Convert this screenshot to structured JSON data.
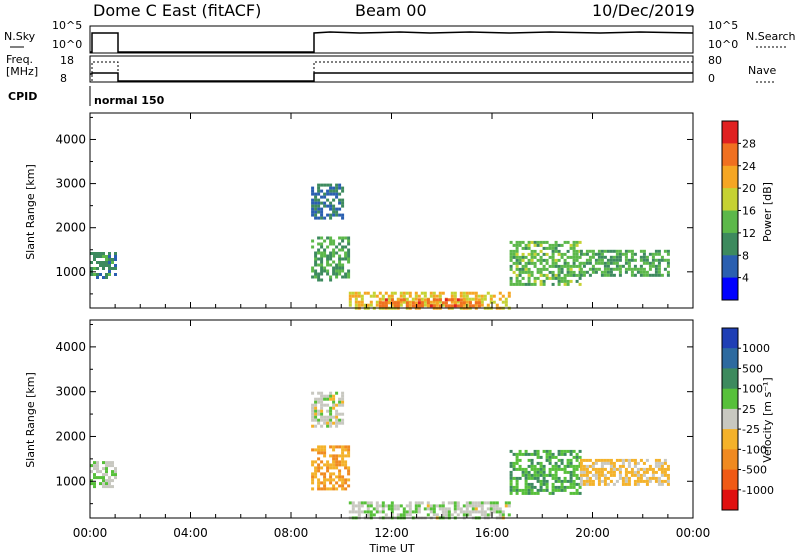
{
  "header": {
    "station": "Dome C East (fitACF)",
    "beam": "Beam 00",
    "date": "10/Dec/2019"
  },
  "strips": {
    "nsky_label": "N.Sky",
    "nsky_ticks": [
      "10^5",
      "10^0"
    ],
    "nsearch_label": "N.Search",
    "nsearch_ticks": [
      "10^5",
      "10^0"
    ],
    "freq_label_1": "Freq.",
    "freq_label_2": "[MHz]",
    "freq_ticks": [
      "18",
      "8"
    ],
    "nave_label": "Nave",
    "nave_ticks": [
      "80",
      "0"
    ],
    "cpid_label": "CPID",
    "cpid_value": "normal 150"
  },
  "time_axis": {
    "label": "Time UT",
    "ticks": [
      "00:00",
      "04:00",
      "08:00",
      "12:00",
      "16:00",
      "20:00",
      "00:00"
    ],
    "range_hours": [
      0,
      24
    ]
  },
  "power_panel": {
    "ylabel": "Slant Range [km]",
    "yticks": [
      "4000",
      "3000",
      "2000",
      "1000"
    ],
    "colorbar_label": "Power [dB]",
    "colorbar_ticks": [
      "28",
      "24",
      "20",
      "16",
      "12",
      "8",
      "4"
    ],
    "colors": [
      "#0000ff",
      "#2a5fb0",
      "#3d8a5e",
      "#5cb84a",
      "#c6d233",
      "#f5a623",
      "#f07020",
      "#e02020"
    ]
  },
  "velocity_panel": {
    "ylabel": "Slant Range [km]",
    "yticks": [
      "4000",
      "3000",
      "2000",
      "1000"
    ],
    "colorbar_label": "Velocity [m s⁻¹]",
    "colorbar_ticks": [
      "1000",
      "500",
      "100",
      "25",
      "-25",
      "-100",
      "-500",
      "-1000"
    ],
    "colors": [
      "#1f3fb5",
      "#2d6a9f",
      "#3d8a5e",
      "#57c03a",
      "#c8c8c0",
      "#f4b22a",
      "#f08a20",
      "#f05a15",
      "#e01010"
    ]
  },
  "chart_data": [
    {
      "type": "heatmap",
      "title": "Power",
      "xlabel": "Time UT",
      "ylabel": "Slant Range [km]",
      "xlim": [
        0,
        24
      ],
      "ylim": [
        180,
        4600
      ],
      "zlabel": "Power [dB]",
      "zlim": [
        0,
        32
      ],
      "regions": [
        {
          "t0": 0.0,
          "t1": 1.0,
          "r0": 850,
          "r1": 1450,
          "value": 10
        },
        {
          "t0": 8.8,
          "t1": 10.0,
          "r0": 2200,
          "r1": 3000,
          "value": 8
        },
        {
          "t0": 8.8,
          "t1": 10.3,
          "r0": 800,
          "r1": 1800,
          "value": 12
        },
        {
          "t0": 10.3,
          "t1": 16.7,
          "r0": 200,
          "r1": 550,
          "value": 20
        },
        {
          "t0": 11.5,
          "t1": 15.5,
          "r0": 200,
          "r1": 400,
          "value": 26
        },
        {
          "t0": 16.7,
          "t1": 19.5,
          "r0": 700,
          "r1": 1700,
          "value": 14
        },
        {
          "t0": 19.5,
          "t1": 23.0,
          "r0": 900,
          "r1": 1500,
          "value": 12
        }
      ]
    },
    {
      "type": "heatmap",
      "title": "Velocity",
      "xlabel": "Time UT",
      "ylabel": "Slant Range [km]",
      "xlim": [
        0,
        24
      ],
      "ylim": [
        180,
        4600
      ],
      "zlabel": "Velocity [m s⁻¹]",
      "zlim": [
        -1000,
        1000
      ],
      "regions": [
        {
          "t0": 0.0,
          "t1": 1.0,
          "r0": 850,
          "r1": 1450,
          "value": 100
        },
        {
          "t0": 8.8,
          "t1": 10.0,
          "r0": 2200,
          "r1": 3000,
          "value": 0
        },
        {
          "t0": 8.8,
          "t1": 10.3,
          "r0": 800,
          "r1": 1800,
          "value": -300
        },
        {
          "t0": 10.3,
          "t1": 16.7,
          "r0": 200,
          "r1": 550,
          "value": 60
        },
        {
          "t0": 16.7,
          "t1": 19.5,
          "r0": 700,
          "r1": 1700,
          "value": 300
        },
        {
          "t0": 19.5,
          "t1": 23.0,
          "r0": 900,
          "r1": 1500,
          "value": -150
        }
      ]
    }
  ]
}
